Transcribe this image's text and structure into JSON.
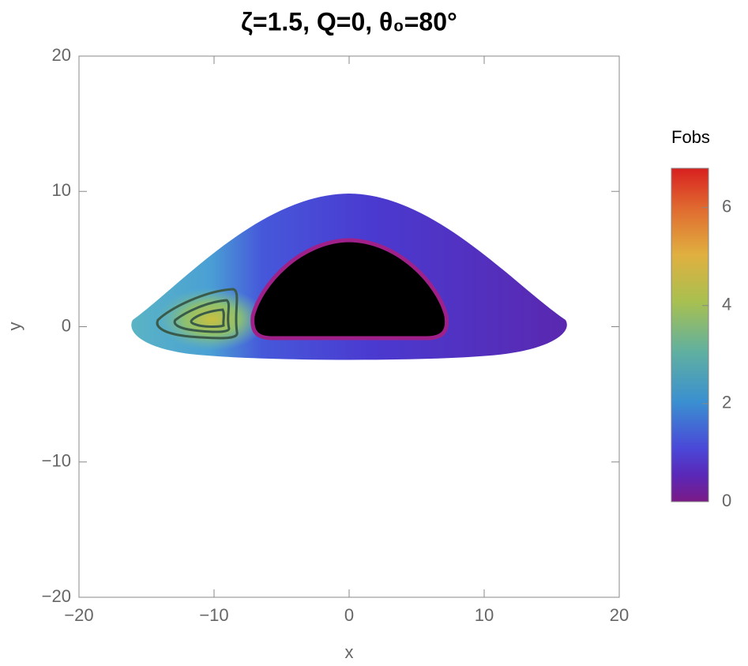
{
  "chart_data": {
    "type": "density",
    "title": "ζ=1.5, Q=0, θ₀=80°",
    "x_label": "x",
    "y_label": "y",
    "xlim": [
      -20,
      20
    ],
    "ylim": [
      -20,
      20
    ],
    "xticks": [
      {
        "value": -20,
        "label": "−20"
      },
      {
        "value": -10,
        "label": "−10"
      },
      0,
      10,
      20
    ],
    "yticks": [
      {
        "value": -20,
        "label": "−20"
      },
      {
        "value": -10,
        "label": "−10"
      },
      0,
      10,
      20
    ],
    "colorbar": {
      "title": "Fobs",
      "lim": [
        0,
        6.8
      ],
      "ticks": [
        0,
        2,
        4,
        6
      ]
    }
  }
}
